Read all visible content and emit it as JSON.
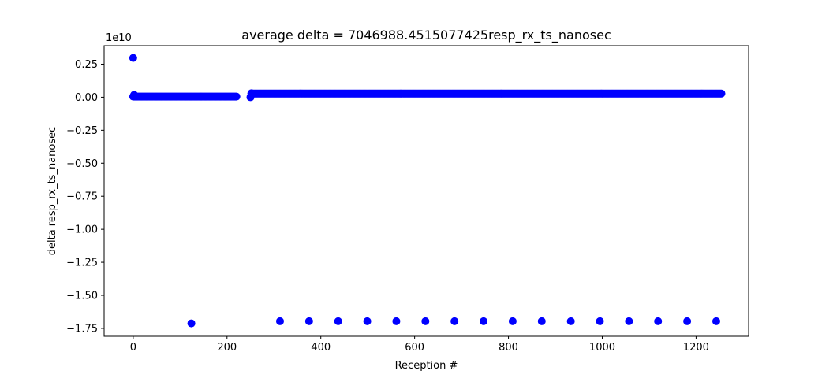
{
  "chart_data": {
    "type": "scatter",
    "title": "average delta = 7046988.4515077425resp_rx_ts_nanosec",
    "xlabel": "Reception #",
    "ylabel": "delta resp_rx_ts_nanosec",
    "y_offset_label": "1e10",
    "xlim": [
      -62,
      1312
    ],
    "ylim": [
      -1.81,
      0.39
    ],
    "x_ticks": [
      0,
      200,
      400,
      600,
      800,
      1000,
      1200
    ],
    "x_tick_labels": [
      "0",
      "200",
      "400",
      "600",
      "800",
      "1000",
      "1200"
    ],
    "y_ticks": [
      0.25,
      0.0,
      -0.25,
      -0.5,
      -0.75,
      -1.0,
      -1.25,
      -1.5,
      -1.75
    ],
    "y_tick_labels": [
      "0.25",
      "0.00",
      "−0.25",
      "−0.50",
      "−0.75",
      "−1.00",
      "−1.25",
      "−1.50",
      "−1.75"
    ],
    "grid": false,
    "color": "#0000ff",
    "series": [
      {
        "segments": [
          {
            "x_start": 0,
            "x_end": 220,
            "y": 0.005
          },
          {
            "x_start": 252,
            "x_end": 1255,
            "y": 0.028
          }
        ],
        "points": [
          {
            "x": 0,
            "y": 0.297
          },
          {
            "x": 2,
            "y": 0.018
          },
          {
            "x": 250,
            "y": 0.0
          },
          {
            "x": 252,
            "y": 0.03
          },
          {
            "x": 124,
            "y": -1.712
          },
          {
            "x": 313,
            "y": -1.696
          },
          {
            "x": 375,
            "y": -1.696
          },
          {
            "x": 437,
            "y": -1.696
          },
          {
            "x": 499,
            "y": -1.696
          },
          {
            "x": 561,
            "y": -1.696
          },
          {
            "x": 623,
            "y": -1.696
          },
          {
            "x": 685,
            "y": -1.696
          },
          {
            "x": 747,
            "y": -1.696
          },
          {
            "x": 809,
            "y": -1.696
          },
          {
            "x": 871,
            "y": -1.696
          },
          {
            "x": 933,
            "y": -1.696
          },
          {
            "x": 995,
            "y": -1.696
          },
          {
            "x": 1057,
            "y": -1.696
          },
          {
            "x": 1119,
            "y": -1.696
          },
          {
            "x": 1181,
            "y": -1.696
          },
          {
            "x": 1243,
            "y": -1.696
          }
        ]
      }
    ]
  }
}
